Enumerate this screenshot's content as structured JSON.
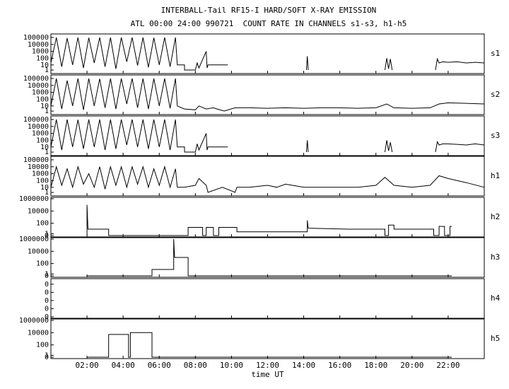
{
  "chart_data": [
    {
      "type": "line",
      "title": "INTERBALL-Tail RF15-I HARD/SOFT X-RAY EMISSION",
      "subtitle": "ATL 00:00 24:00 990721  COUNT RATE IN CHANNELS s1-s3, h1-h5",
      "label": "s1",
      "yscale": "symlog",
      "xlim": [
        0,
        24
      ],
      "ylim": [
        0,
        200000
      ],
      "yticks": [
        1,
        10,
        100,
        1000,
        10000,
        100000
      ],
      "color": "#000000",
      "x": [
        0,
        0.3,
        0.6,
        0.9,
        1.2,
        1.5,
        1.8,
        2.1,
        2.4,
        2.7,
        3.0,
        3.3,
        3.6,
        3.9,
        4.2,
        4.5,
        4.8,
        5.1,
        5.4,
        5.7,
        6.0,
        6.3,
        6.6,
        6.9,
        7.0,
        7.4,
        7.4,
        8.0,
        8.1,
        8.2,
        8.6,
        8.65,
        8.7,
        9.8,
        9.9,
        14.15,
        14.2,
        14.25,
        14.3,
        18.5,
        18.6,
        18.7,
        18.8,
        18.9,
        19.0,
        21.3,
        21.4,
        21.5,
        21.7,
        22.0,
        22.5,
        23.0,
        23.5,
        24.0
      ],
      "values": [
        20,
        100000,
        5,
        80000,
        10,
        100000,
        3,
        90000,
        20,
        100000,
        5,
        100000,
        2,
        100000,
        30,
        100000,
        8,
        100000,
        4,
        90000,
        10,
        100000,
        5,
        100000,
        10,
        10,
        1,
        1,
        20,
        3,
        1000,
        3,
        10,
        10,
        null,
        1,
        200,
        1,
        null,
        1,
        100,
        2,
        80,
        1,
        null,
        1,
        80,
        20,
        30,
        25,
        30,
        20,
        25,
        20
      ]
    },
    {
      "type": "line",
      "label": "s2",
      "yscale": "symlog",
      "xlim": [
        0,
        24
      ],
      "ylim": [
        0,
        200000
      ],
      "yticks": [
        1,
        10,
        100,
        1000,
        10000,
        100000
      ],
      "color": "#000000",
      "x": [
        0,
        0.3,
        0.6,
        0.9,
        1.2,
        1.5,
        1.8,
        2.1,
        2.4,
        2.7,
        3.0,
        3.3,
        3.6,
        3.9,
        4.2,
        4.5,
        4.8,
        5.1,
        5.4,
        5.7,
        6.0,
        6.3,
        6.6,
        6.9,
        7.0,
        7.4,
        7.4,
        8.0,
        8.2,
        8.6,
        9.0,
        9.2,
        9.6,
        10.2,
        11,
        12,
        13,
        14,
        15,
        16,
        17,
        18,
        18.6,
        19,
        20,
        21,
        21.5,
        22,
        23,
        24
      ],
      "values": [
        10,
        100000,
        3,
        50000,
        10,
        100000,
        2,
        100000,
        10,
        90000,
        5,
        100000,
        3,
        100000,
        20,
        100000,
        5,
        100000,
        3,
        100000,
        10,
        100000,
        4,
        100000,
        10,
        3,
        3,
        2,
        10,
        3,
        5,
        3,
        1,
        5,
        5,
        4,
        5,
        4,
        5,
        5,
        4,
        5,
        20,
        5,
        4,
        5,
        20,
        30,
        25,
        20
      ]
    },
    {
      "type": "line",
      "label": "s3",
      "yscale": "symlog",
      "xlim": [
        0,
        24
      ],
      "ylim": [
        0,
        200000
      ],
      "yticks": [
        1,
        10,
        100,
        1000,
        10000,
        100000
      ],
      "color": "#000000",
      "x": [
        0,
        0.3,
        0.6,
        0.9,
        1.2,
        1.5,
        1.8,
        2.1,
        2.4,
        2.7,
        3.0,
        3.3,
        3.6,
        3.9,
        4.2,
        4.5,
        4.8,
        5.1,
        5.4,
        5.7,
        6.0,
        6.3,
        6.6,
        6.9,
        7.0,
        7.4,
        7.4,
        8.0,
        8.1,
        8.2,
        8.6,
        8.65,
        8.7,
        9.8,
        9.9,
        14.15,
        14.2,
        14.25,
        14.3,
        18.5,
        18.6,
        18.7,
        18.8,
        18.9,
        19.0,
        21.3,
        21.4,
        21.5,
        21.7,
        22.0,
        22.5,
        23.0,
        23.5,
        24.0
      ],
      "values": [
        10,
        100000,
        3,
        100000,
        10,
        90000,
        5,
        100000,
        10,
        100000,
        3,
        100000,
        5,
        100000,
        20,
        100000,
        10,
        100000,
        5,
        100000,
        10,
        100000,
        3,
        100000,
        10,
        10,
        1,
        1,
        30,
        3,
        1000,
        3,
        10,
        10,
        null,
        1,
        100,
        1,
        null,
        1,
        100,
        2,
        50,
        1,
        null,
        1,
        60,
        20,
        30,
        30,
        25,
        20,
        30,
        20
      ]
    },
    {
      "type": "line",
      "label": "h1",
      "yscale": "symlog",
      "xlim": [
        0,
        24
      ],
      "ylim": [
        0,
        200000
      ],
      "yticks": [
        1,
        10,
        100,
        1000,
        10000,
        100000
      ],
      "color": "#000000",
      "x": [
        0,
        0.3,
        0.6,
        0.9,
        1.2,
        1.5,
        1.8,
        2.1,
        2.4,
        2.7,
        3.0,
        3.3,
        3.6,
        3.9,
        4.2,
        4.5,
        4.8,
        5.1,
        5.4,
        5.7,
        6.0,
        6.3,
        6.6,
        6.9,
        7.0,
        7.4,
        8.0,
        8.2,
        8.6,
        8.7,
        9.5,
        10.2,
        10.3,
        11,
        12,
        12.5,
        13,
        14,
        15,
        16,
        17,
        18,
        18.5,
        19,
        20,
        21,
        21.5,
        22,
        23,
        24
      ],
      "values": [
        10,
        10000,
        20,
        5000,
        10,
        10000,
        30,
        1000,
        10,
        10000,
        5,
        10000,
        20,
        10000,
        10,
        10000,
        30,
        10000,
        10,
        5000,
        20,
        10000,
        10,
        5000,
        10,
        10,
        20,
        200,
        20,
        1,
        10,
        1,
        10,
        10,
        20,
        10,
        30,
        10,
        10,
        10,
        10,
        20,
        300,
        20,
        10,
        20,
        500,
        200,
        50,
        10
      ]
    },
    {
      "type": "line",
      "label": "h2",
      "yscale": "symlog",
      "xlim": [
        0,
        24
      ],
      "ylim": [
        0,
        1000000
      ],
      "yticks": [
        0,
        1,
        100,
        10000,
        1000000
      ],
      "color": "#000000",
      "x": [
        2.0,
        2.0,
        2.05,
        3.2,
        3.2,
        7.6,
        7.6,
        8.4,
        8.4,
        8.6,
        8.6,
        9.0,
        9.0,
        9.3,
        9.3,
        10.3,
        10.3,
        14.2,
        14.2,
        14.25,
        16.5,
        18.5,
        18.5,
        18.7,
        18.7,
        19.0,
        19.0,
        21.2,
        21.2,
        21.5,
        21.5,
        21.8,
        21.8,
        22.1,
        22.1,
        22.2
      ],
      "values": [
        0,
        100000,
        10,
        10,
        0,
        0,
        20,
        20,
        0,
        0,
        20,
        20,
        0,
        0,
        20,
        20,
        3,
        3,
        300,
        15,
        10,
        10,
        0,
        0,
        50,
        50,
        10,
        10,
        0,
        0,
        30,
        30,
        0,
        0,
        30,
        30
      ]
    },
    {
      "type": "line",
      "label": "h3",
      "yscale": "symlog",
      "xlim": [
        0,
        24
      ],
      "ylim": [
        0,
        1000000
      ],
      "yticks": [
        0,
        1,
        100,
        10000,
        1000000
      ],
      "color": "#000000",
      "x": [
        2.0,
        5.6,
        5.6,
        6.8,
        6.8,
        6.85,
        6.85,
        7.6,
        7.6,
        22.2
      ],
      "values": [
        0,
        0,
        10,
        10,
        1000000,
        1000,
        1000,
        1000,
        0,
        0
      ]
    },
    {
      "type": "line",
      "label": "h4",
      "yscale": "linear",
      "xlim": [
        0,
        24
      ],
      "ylim": [
        0,
        0.45
      ],
      "yticks": [
        0,
        {
          "value": 0.1,
          "label": "0"
        },
        {
          "value": 0.2,
          "label": "0"
        },
        {
          "value": 0.3,
          "label": "0"
        },
        {
          "value": 0.4,
          "label": "0"
        }
      ],
      "color": "#000000"
    },
    {
      "type": "line",
      "label": "h5",
      "yscale": "symlog",
      "xlim": [
        0,
        24
      ],
      "ylim": [
        0,
        1000000
      ],
      "yticks": [
        0,
        1,
        100,
        10000,
        1000000
      ],
      "color": "#000000",
      "x": [
        2.0,
        3.2,
        3.2,
        4.3,
        4.3,
        4.4,
        4.4,
        5.6,
        5.6,
        22.2
      ],
      "values": [
        0,
        0,
        5000,
        5000,
        0,
        0,
        10000,
        10000,
        0,
        0
      ],
      "xlabel": "time UT",
      "xticks": [
        {
          "value": 2,
          "label": "02:00"
        },
        {
          "value": 4,
          "label": "04:00"
        },
        {
          "value": 6,
          "label": "06:00"
        },
        {
          "value": 8,
          "label": "08:00"
        },
        {
          "value": 10,
          "label": "10:00"
        },
        {
          "value": 12,
          "label": "12:00"
        },
        {
          "value": 14,
          "label": "14:00"
        },
        {
          "value": 16,
          "label": "16:00"
        },
        {
          "value": 18,
          "label": "18:00"
        },
        {
          "value": 20,
          "label": "20:00"
        },
        {
          "value": 22,
          "label": "22:00"
        }
      ]
    }
  ]
}
